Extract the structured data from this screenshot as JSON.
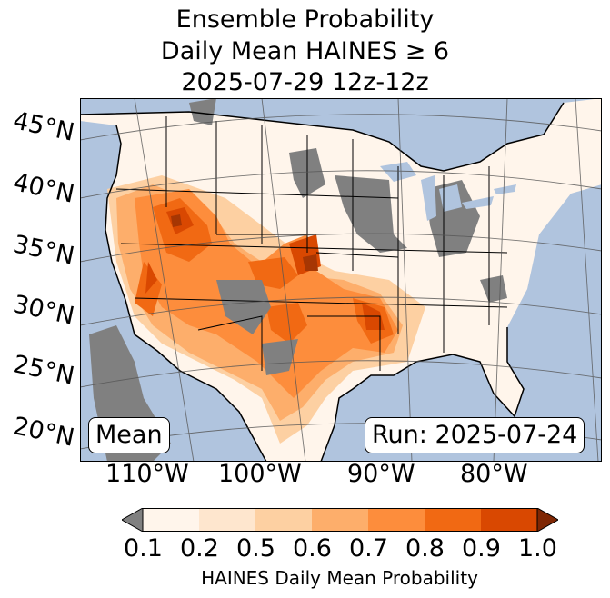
{
  "title": {
    "line1": "Ensemble Probability",
    "line2": "Daily Mean HAINES ≥ 6",
    "line3": "2025-07-29 12z-12z"
  },
  "map": {
    "latitude_labels": [
      "45°N",
      "40°N",
      "35°N",
      "30°N",
      "25°N",
      "20°N"
    ],
    "longitude_labels": [
      "110°W",
      "100°W",
      "90°W",
      "80°W"
    ],
    "stat_label": "Mean",
    "run_label": "Run: 2025-07-24",
    "colors": {
      "ocean": "#b0c4de",
      "missing": "#808080",
      "low": "#fff5eb"
    }
  },
  "colorbar": {
    "label": "HAINES Daily Mean Probability",
    "ticks": [
      "0.1",
      "0.2",
      "0.5",
      "0.6",
      "0.7",
      "0.8",
      "0.9",
      "1.0"
    ],
    "colors": [
      "#fff5eb",
      "#fee6ce",
      "#fdd0a2",
      "#fdae6b",
      "#fd8d3c",
      "#f16913",
      "#d94801",
      "#a63603"
    ],
    "under_color": "#808080",
    "over_color": "#7f2704"
  }
}
